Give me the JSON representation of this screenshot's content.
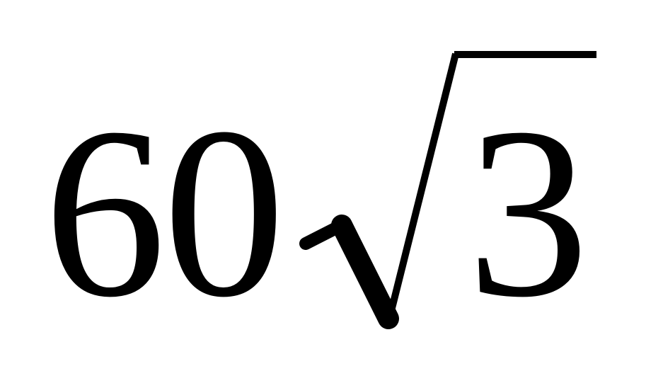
{
  "expression": {
    "coefficient": "60",
    "radical_symbol": "√",
    "radicand": "3"
  }
}
